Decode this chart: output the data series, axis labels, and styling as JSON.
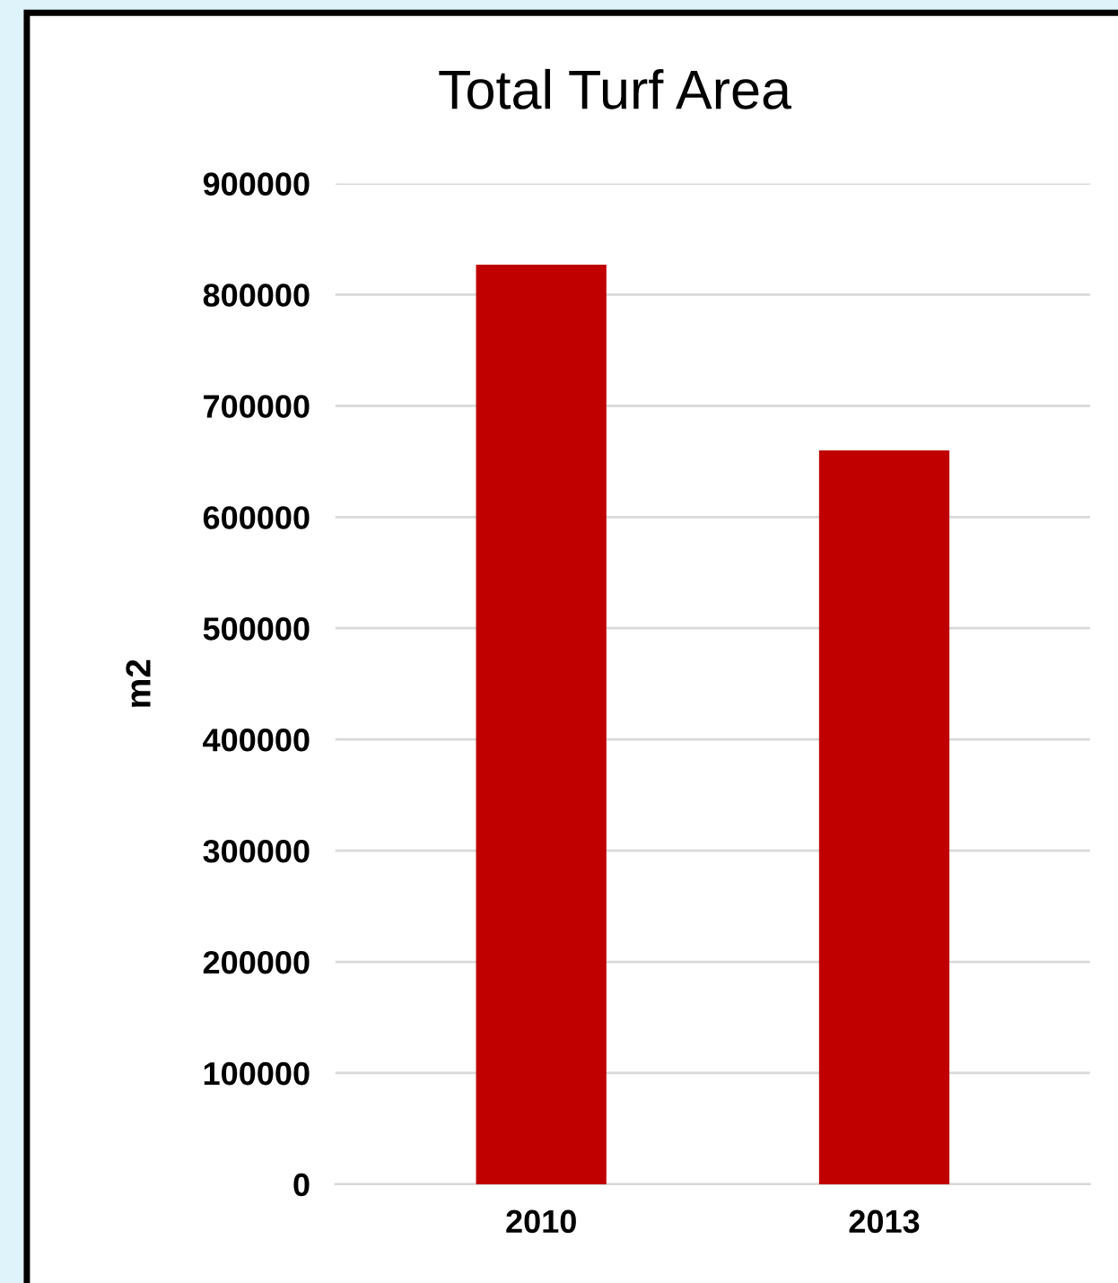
{
  "chart_data": {
    "type": "bar",
    "title": "Total Turf Area",
    "ylabel": "m2",
    "categories": [
      "2010",
      "2013"
    ],
    "values": [
      827000,
      660000
    ],
    "color": "#c00000",
    "ylim": [
      0,
      900000
    ],
    "yticks": [
      0,
      100000,
      200000,
      300000,
      400000,
      500000,
      600000,
      700000,
      800000,
      900000
    ],
    "grid": "y",
    "legend": false
  }
}
